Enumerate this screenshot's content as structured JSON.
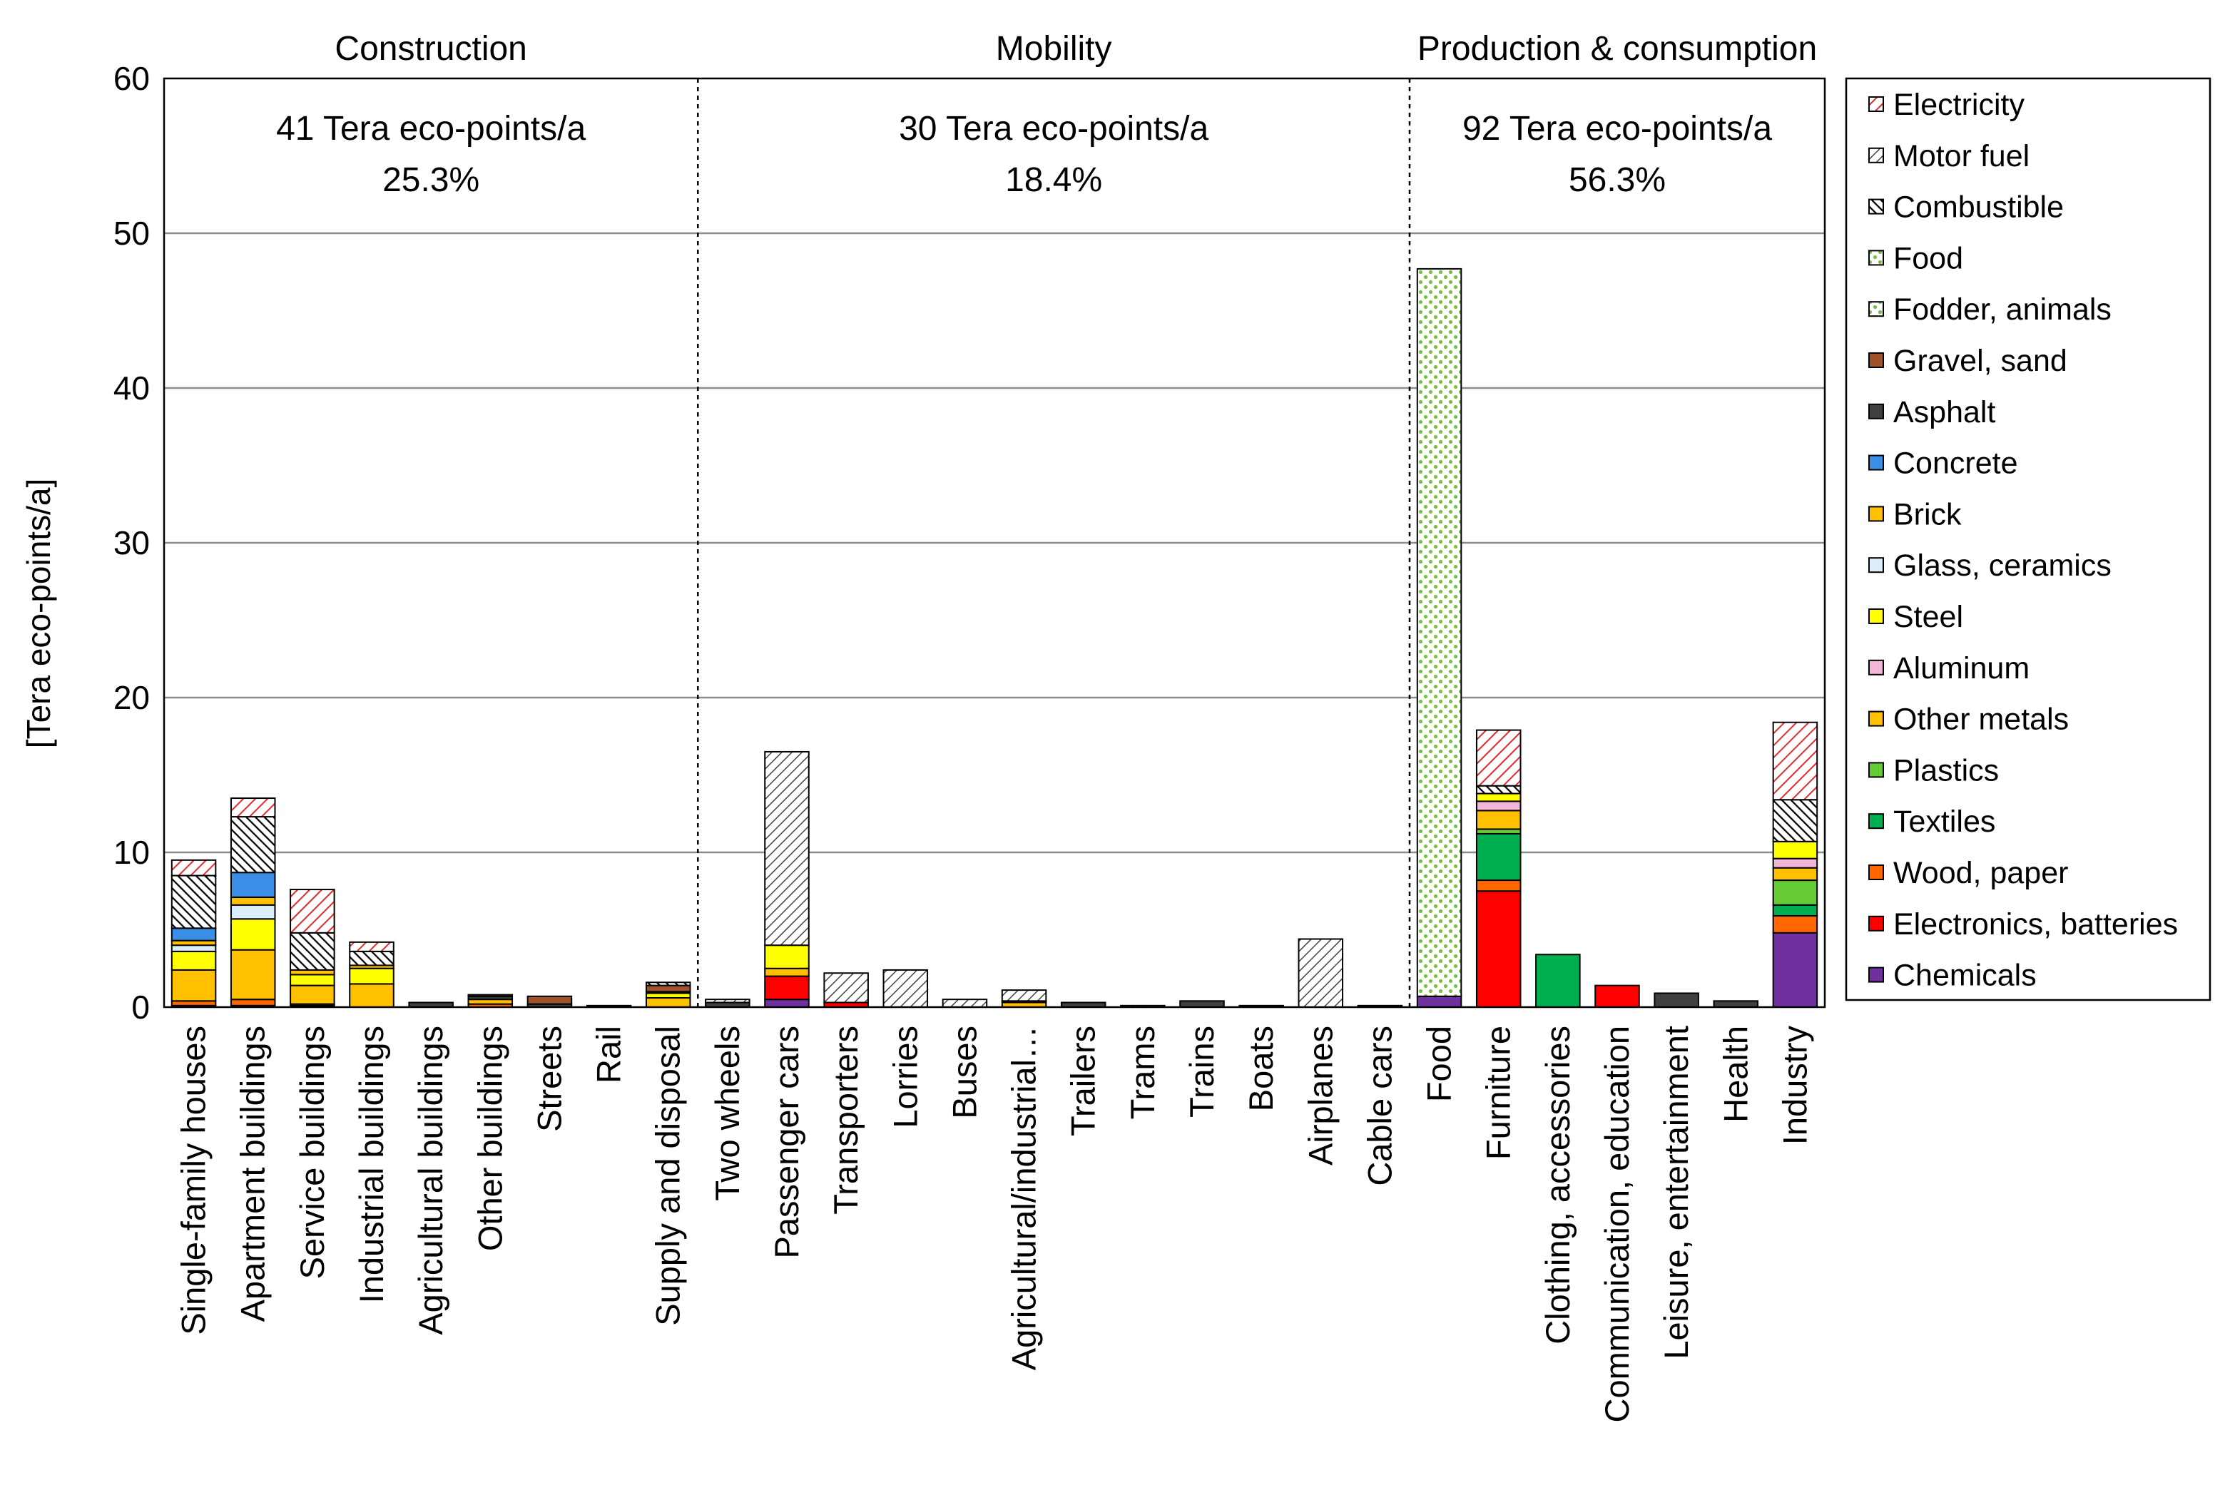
{
  "chart_data": {
    "type": "bar",
    "stacked": true,
    "ylabel": "[Tera eco-points/a]",
    "ylim": [
      0,
      60
    ],
    "yticks": [
      0,
      10,
      20,
      30,
      40,
      50,
      60
    ],
    "grid": true,
    "legend_position": "right",
    "groups": [
      {
        "title": "Construction",
        "total": "41 Tera eco-points/a",
        "share": "25.3%",
        "categories": 9
      },
      {
        "title": "Mobility",
        "total": "30 Tera eco-points/a",
        "share": "18.4%",
        "categories": 12
      },
      {
        "title": "Production & consumption",
        "total": "92 Tera eco-points/a",
        "share": "56.3%",
        "categories": 7
      }
    ],
    "categories": [
      "Single-family houses",
      "Apartment buildings",
      "Service buildings",
      "Industrial buildings",
      "Agricultural buildings",
      "Other buildings",
      "Streets",
      "Rail",
      "Supply and disposal",
      "Two wheels",
      "Passenger cars",
      "Transporters",
      "Lorries",
      "Buses",
      "Agricultural/industrial…",
      "Trailers",
      "Trams",
      "Trains",
      "Boats",
      "Airplanes",
      "Cable cars",
      "Food",
      "Furniture",
      "Clothing, accessories",
      "Communication, education",
      "Leisure, entertainment",
      "Health",
      "Industry"
    ],
    "series": [
      {
        "name": "Chemicals",
        "color": "#7030a0",
        "pattern": "solid",
        "values": [
          0.1,
          0.1,
          0.1,
          0,
          0,
          0,
          0,
          0,
          0,
          0,
          0.5,
          0,
          0,
          0,
          0,
          0,
          0,
          0,
          0,
          0,
          0,
          0.7,
          0,
          0,
          0,
          0,
          0,
          4.8
        ]
      },
      {
        "name": "Electronics, batteries",
        "color": "#ff0000",
        "pattern": "solid",
        "values": [
          0,
          0,
          0,
          0,
          0,
          0,
          0,
          0,
          0,
          0,
          1.5,
          0.3,
          0,
          0,
          0,
          0,
          0,
          0,
          0,
          0,
          0,
          0,
          7.5,
          0,
          1.4,
          0,
          0,
          0
        ]
      },
      {
        "name": "Wood, paper",
        "color": "#ff6600",
        "pattern": "solid",
        "values": [
          0.3,
          0.4,
          0.1,
          0,
          0,
          0.2,
          0,
          0,
          0,
          0,
          0,
          0,
          0,
          0,
          0,
          0,
          0,
          0,
          0,
          0,
          0,
          0,
          0.7,
          0,
          0,
          0,
          0,
          1.1
        ]
      },
      {
        "name": "Textiles",
        "color": "#00b050",
        "pattern": "solid",
        "values": [
          0,
          0,
          0,
          0,
          0,
          0,
          0,
          0,
          0,
          0,
          0,
          0,
          0,
          0,
          0,
          0,
          0,
          0,
          0,
          0,
          0,
          0,
          3,
          3.4,
          0,
          0,
          0,
          0.7
        ]
      },
      {
        "name": "Plastics",
        "color": "#66cc33",
        "pattern": "solid",
        "values": [
          0,
          0,
          0,
          0,
          0,
          0,
          0,
          0,
          0,
          0,
          0,
          0,
          0,
          0,
          0,
          0,
          0,
          0,
          0,
          0,
          0,
          0,
          0.3,
          0,
          0,
          0,
          0,
          1.6
        ]
      },
      {
        "name": "Other metals",
        "color": "#ffc000",
        "pattern": "solid",
        "values": [
          2,
          3.2,
          1.2,
          1.5,
          0,
          0.3,
          0,
          0,
          0.6,
          0,
          0.5,
          0,
          0,
          0,
          0.3,
          0,
          0,
          0,
          0,
          0,
          0,
          0,
          1.2,
          0,
          0,
          0,
          0,
          0.8
        ]
      },
      {
        "name": "Aluminum",
        "color": "#f2b6d8",
        "pattern": "solid",
        "values": [
          0,
          0,
          0,
          0,
          0,
          0,
          0,
          0,
          0,
          0,
          0,
          0,
          0,
          0,
          0,
          0,
          0,
          0,
          0,
          0,
          0,
          0,
          0.6,
          0,
          0,
          0,
          0,
          0.6
        ]
      },
      {
        "name": "Steel",
        "color": "#ffff00",
        "pattern": "solid",
        "values": [
          1.2,
          2,
          0.7,
          1,
          0,
          0,
          0,
          0,
          0.3,
          0,
          1.5,
          0,
          0,
          0,
          0,
          0,
          0,
          0,
          0,
          0,
          0,
          0,
          0.5,
          0,
          0,
          0,
          0,
          1.1
        ]
      },
      {
        "name": "Glass, ceramics",
        "color": "#dceefa",
        "pattern": "solid",
        "values": [
          0.4,
          0.9,
          0,
          0,
          0,
          0,
          0,
          0,
          0,
          0,
          0,
          0,
          0,
          0,
          0,
          0,
          0,
          0,
          0,
          0,
          0,
          0,
          0,
          0,
          0,
          0,
          0,
          0
        ]
      },
      {
        "name": "Brick",
        "color": "#ffc000",
        "pattern": "solid",
        "values": [
          0.3,
          0.5,
          0.3,
          0.2,
          0,
          0,
          0,
          0,
          0,
          0,
          0,
          0,
          0,
          0,
          0,
          0,
          0,
          0,
          0,
          0,
          0,
          0,
          0,
          0,
          0,
          0,
          0,
          0
        ]
      },
      {
        "name": "Concrete",
        "color": "#3a8ee6",
        "pattern": "solid",
        "values": [
          0.8,
          1.6,
          0,
          0,
          0,
          0,
          0,
          0,
          0,
          0,
          0,
          0,
          0,
          0,
          0,
          0,
          0,
          0,
          0,
          0,
          0,
          0,
          0,
          0,
          0,
          0,
          0,
          0
        ]
      },
      {
        "name": "Asphalt",
        "color": "#404040",
        "pattern": "solid",
        "values": [
          0,
          0,
          0,
          0,
          0.3,
          0.2,
          0.2,
          0.1,
          0.1,
          0.3,
          0,
          0,
          0,
          0,
          0,
          0.3,
          0,
          0.4,
          0.1,
          0,
          0.1,
          0,
          0,
          0,
          0,
          0.9,
          0.4,
          0
        ]
      },
      {
        "name": "Gravel, sand",
        "color": "#a0522d",
        "pattern": "solid",
        "values": [
          0,
          0,
          0,
          0,
          0,
          0.1,
          0.5,
          0,
          0.4,
          0,
          0,
          0,
          0,
          0,
          0.1,
          0,
          0,
          0,
          0,
          0,
          0,
          0,
          0,
          0,
          0,
          0,
          0,
          0
        ]
      },
      {
        "name": "Fodder, animals",
        "color": "#92d050",
        "pattern": "dots",
        "values": [
          0,
          0,
          0,
          0,
          0,
          0,
          0,
          0,
          0,
          0,
          0,
          0,
          0,
          0,
          0,
          0,
          0,
          0,
          0,
          0,
          0,
          0,
          0,
          0,
          0,
          0,
          0,
          0
        ]
      },
      {
        "name": "Food",
        "color": "#92d050",
        "pattern": "dots",
        "values": [
          0,
          0,
          0,
          0,
          0,
          0,
          0,
          0,
          0,
          0,
          0,
          0,
          0,
          0,
          0,
          0,
          0,
          0,
          0,
          0,
          0,
          47,
          0,
          0,
          0,
          0,
          0,
          0
        ]
      },
      {
        "name": "Combustible",
        "color": "#000000",
        "pattern": "hatch-dense",
        "values": [
          3.4,
          3.6,
          2.4,
          0.9,
          0,
          0,
          0,
          0,
          0.2,
          0,
          0,
          0,
          0,
          0,
          0,
          0,
          0,
          0,
          0,
          0,
          0,
          0,
          0.5,
          0,
          0,
          0,
          0,
          2.7
        ]
      },
      {
        "name": "Motor fuel",
        "color": "#333333",
        "pattern": "hatch",
        "values": [
          0,
          0,
          0,
          0,
          0,
          0,
          0,
          0,
          0,
          0.2,
          12.5,
          1.9,
          2.4,
          0.5,
          0.7,
          0,
          0.1,
          0,
          0,
          4.4,
          0,
          0,
          0,
          0,
          0,
          0,
          0,
          0
        ]
      },
      {
        "name": "Electricity",
        "color": "#ff0000",
        "pattern": "hatch-red",
        "values": [
          1,
          1.2,
          2.8,
          0.6,
          0,
          0,
          0,
          0,
          0,
          0,
          0,
          0,
          0,
          0,
          0,
          0,
          0,
          0,
          0,
          0,
          0,
          0,
          3.6,
          0,
          0,
          0,
          0,
          5
        ]
      }
    ],
    "legend_order": [
      "Electricity",
      "Motor fuel",
      "Combustible",
      "Food",
      "Fodder, animals",
      "Gravel, sand",
      "Asphalt",
      "Concrete",
      "Brick",
      "Glass, ceramics",
      "Steel",
      "Aluminum",
      "Other metals",
      "Plastics",
      "Textiles",
      "Wood, paper",
      "Electronics, batteries",
      "Chemicals"
    ]
  }
}
